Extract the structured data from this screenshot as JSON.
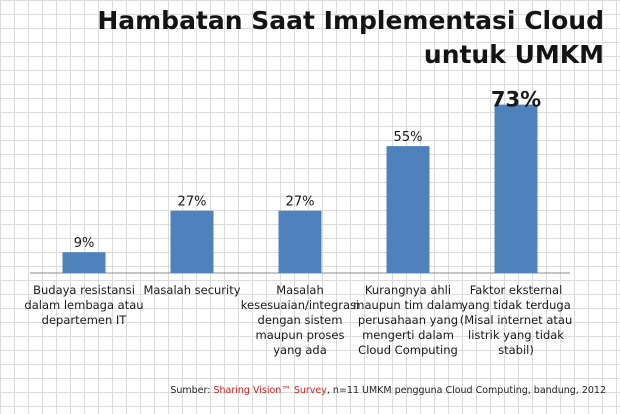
{
  "title": "Hambatan Saat Implementasi Cloud untuk UMKM",
  "colors": {
    "bar": "#4f81bd",
    "source_link": "#cc2222"
  },
  "chart_data": {
    "type": "bar",
    "title": "Hambatan Saat Implementasi Cloud untuk UMKM",
    "categories": [
      [
        "Budaya resistansi",
        "dalam lembaga atau",
        "departemen IT"
      ],
      [
        "Masalah security"
      ],
      [
        "Masalah",
        "kesesuaian/integrasi",
        "dengan sistem",
        "maupun proses",
        "yang ada"
      ],
      [
        "Kurangnya ahli",
        "maupun tim dalam",
        "perusahaan yang",
        "mengerti dalam",
        "Cloud Computing"
      ],
      [
        "Faktor eksternal",
        "yang tidak terduga",
        "(Misal internet atau",
        "listrik yang tidak",
        "stabil)"
      ]
    ],
    "values": [
      9,
      27,
      27,
      55,
      73
    ],
    "value_labels": [
      "9%",
      "27%",
      "27%",
      "55%",
      "73%"
    ],
    "ylim": [
      0,
      75
    ],
    "grid": true,
    "legend": "none"
  },
  "source": {
    "prefix": "Sumber: ",
    "highlight": "Sharing Vision™ Survey",
    "suffix": ", n=11 UMKM pengguna Cloud Computing, bandung, 2012"
  }
}
